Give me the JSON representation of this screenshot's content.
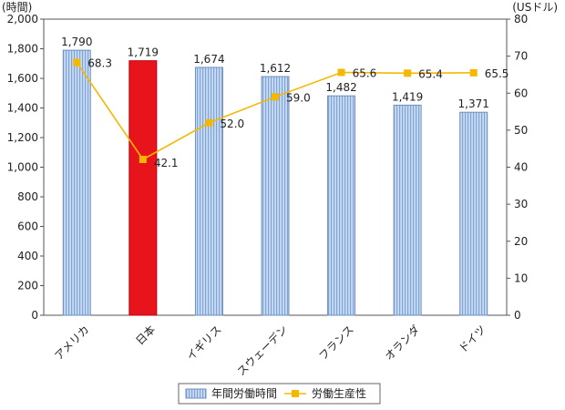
{
  "chart_data": {
    "type": "bar",
    "categories": [
      "アメリカ",
      "日本",
      "イギリス",
      "スウェーデン",
      "フランス",
      "オランダ",
      "ドイツ"
    ],
    "series": [
      {
        "name": "年間労働時間",
        "type": "bar",
        "axis": "left",
        "values": [
          1790,
          1719,
          1674,
          1612,
          1482,
          1419,
          1371
        ],
        "labels": [
          "1,790",
          "1,719",
          "1,674",
          "1,612",
          "1,482",
          "1,419",
          "1,371"
        ],
        "color": "#a9c4e8",
        "highlight_color": "#e8141c",
        "highlight_index": 1
      },
      {
        "name": "労働生産性",
        "type": "line",
        "axis": "right",
        "values": [
          68.3,
          42.1,
          52.0,
          59.0,
          65.6,
          65.4,
          65.5
        ],
        "labels": [
          "68.3",
          "42.1",
          "52.0",
          "59.0",
          "65.6",
          "65.4",
          "65.5"
        ],
        "color": "#f5b800"
      }
    ],
    "y_left": {
      "unit": "(時間)",
      "range": [
        0,
        2000
      ],
      "ticks": [
        "0",
        "200",
        "400",
        "600",
        "800",
        "1,000",
        "1,200",
        "1,400",
        "1,600",
        "1,800",
        "2,000"
      ]
    },
    "y_right": {
      "unit": "(USドル)",
      "range": [
        0,
        80
      ],
      "ticks": [
        "0",
        "10",
        "20",
        "30",
        "40",
        "50",
        "60",
        "70",
        "80"
      ]
    },
    "grid": false,
    "legend_position": "bottom"
  }
}
